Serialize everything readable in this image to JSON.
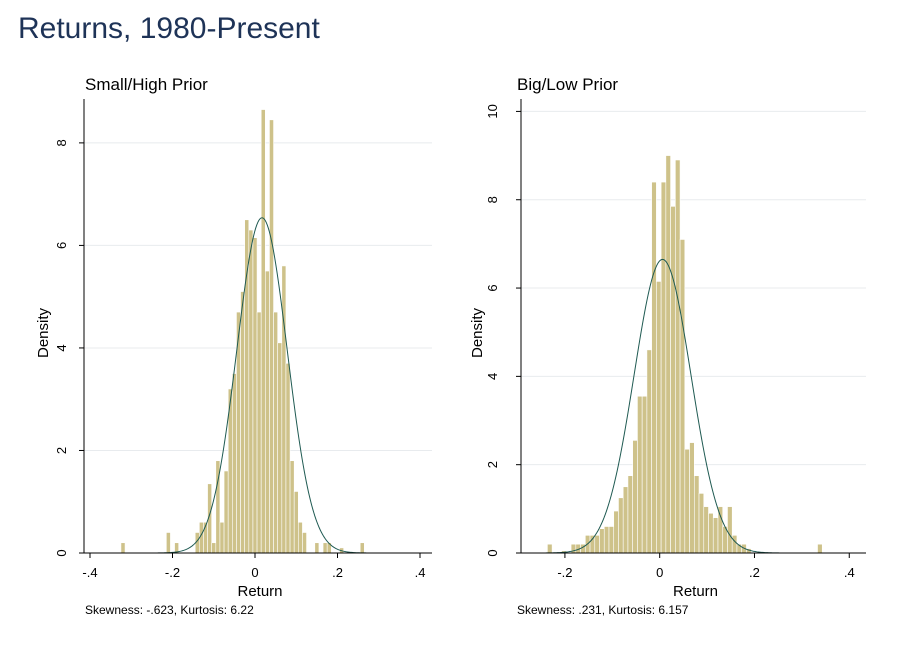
{
  "page": {
    "title": "Returns, 1980-Present"
  },
  "colors": {
    "bar_fill": "#cec28a",
    "bar_stroke": "#ffffff",
    "curve": "#1f5a52",
    "grid": "#e8ebee",
    "title": "#1e3357"
  },
  "chart_data": [
    {
      "type": "bar",
      "title": "Small/High Prior",
      "xlabel": "Return",
      "ylabel": "Density",
      "footer": "Skewness: -.623, Kurtosis: 6.22",
      "xlim": [
        -0.4,
        0.4
      ],
      "ylim": [
        0,
        8.7
      ],
      "xticks": [
        -0.4,
        -0.2,
        0,
        0.2,
        0.4
      ],
      "xtick_labels": [
        "-.4",
        "-.2",
        "0",
        ".2",
        ".4"
      ],
      "yticks": [
        0,
        2,
        4,
        6,
        8
      ],
      "ytick_labels": [
        "0",
        "2",
        "4",
        "6",
        "8"
      ],
      "grid": true,
      "bin_width": 0.01,
      "bins": [
        {
          "x": -0.32,
          "y": 0.2
        },
        {
          "x": -0.21,
          "y": 0.4
        },
        {
          "x": -0.19,
          "y": 0.2
        },
        {
          "x": -0.14,
          "y": 0.4
        },
        {
          "x": -0.13,
          "y": 0.6
        },
        {
          "x": -0.12,
          "y": 0.6
        },
        {
          "x": -0.11,
          "y": 1.35
        },
        {
          "x": -0.1,
          "y": 0.2
        },
        {
          "x": -0.09,
          "y": 1.8
        },
        {
          "x": -0.08,
          "y": 0.6
        },
        {
          "x": -0.07,
          "y": 1.6
        },
        {
          "x": -0.06,
          "y": 3.2
        },
        {
          "x": -0.05,
          "y": 3.5
        },
        {
          "x": -0.04,
          "y": 4.7
        },
        {
          "x": -0.03,
          "y": 5.1
        },
        {
          "x": -0.02,
          "y": 6.5
        },
        {
          "x": -0.01,
          "y": 6.3
        },
        {
          "x": 0.0,
          "y": 6.15
        },
        {
          "x": 0.01,
          "y": 4.7
        },
        {
          "x": 0.02,
          "y": 8.65
        },
        {
          "x": 0.03,
          "y": 5.5
        },
        {
          "x": 0.04,
          "y": 8.45
        },
        {
          "x": 0.05,
          "y": 4.7
        },
        {
          "x": 0.06,
          "y": 4.1
        },
        {
          "x": 0.07,
          "y": 5.6
        },
        {
          "x": 0.08,
          "y": 3.7
        },
        {
          "x": 0.09,
          "y": 1.8
        },
        {
          "x": 0.1,
          "y": 1.2
        },
        {
          "x": 0.11,
          "y": 0.6
        },
        {
          "x": 0.12,
          "y": 0.4
        },
        {
          "x": 0.15,
          "y": 0.2
        },
        {
          "x": 0.17,
          "y": 0.2
        },
        {
          "x": 0.18,
          "y": 0.2
        },
        {
          "x": 0.21,
          "y": 0.1
        },
        {
          "x": 0.26,
          "y": 0.2
        }
      ],
      "normal_curve": {
        "mean": 0.017,
        "sd": 0.061
      }
    },
    {
      "type": "bar",
      "title": "Big/Low Prior",
      "xlabel": "Return",
      "ylabel": "Density",
      "footer": "Skewness: .231, Kurtosis: 6.157",
      "xlim": [
        -0.28,
        0.41
      ],
      "ylim": [
        0,
        10.1
      ],
      "xticks": [
        -0.2,
        0,
        0.2,
        0.4
      ],
      "xtick_labels": [
        "-.2",
        "0",
        ".2",
        ".4"
      ],
      "yticks": [
        0,
        2,
        4,
        6,
        8,
        10
      ],
      "ytick_labels": [
        "0",
        "2",
        "4",
        "6",
        "8",
        "10"
      ],
      "grid": true,
      "bin_width": 0.01,
      "bins": [
        {
          "x": -0.232,
          "y": 0.2
        },
        {
          "x": -0.202,
          "y": 0.05
        },
        {
          "x": -0.182,
          "y": 0.2
        },
        {
          "x": -0.172,
          "y": 0.2
        },
        {
          "x": -0.162,
          "y": 0.2
        },
        {
          "x": -0.152,
          "y": 0.4
        },
        {
          "x": -0.142,
          "y": 0.4
        },
        {
          "x": -0.132,
          "y": 0.4
        },
        {
          "x": -0.122,
          "y": 0.55
        },
        {
          "x": -0.112,
          "y": 0.6
        },
        {
          "x": -0.102,
          "y": 0.6
        },
        {
          "x": -0.092,
          "y": 0.95
        },
        {
          "x": -0.082,
          "y": 1.25
        },
        {
          "x": -0.072,
          "y": 1.5
        },
        {
          "x": -0.062,
          "y": 1.75
        },
        {
          "x": -0.052,
          "y": 2.55
        },
        {
          "x": -0.042,
          "y": 3.55
        },
        {
          "x": -0.032,
          "y": 3.55
        },
        {
          "x": -0.022,
          "y": 4.6
        },
        {
          "x": -0.012,
          "y": 8.4
        },
        {
          "x": -0.002,
          "y": 6.15
        },
        {
          "x": 0.008,
          "y": 8.4
        },
        {
          "x": 0.018,
          "y": 9.0
        },
        {
          "x": 0.028,
          "y": 7.85
        },
        {
          "x": 0.038,
          "y": 8.9
        },
        {
          "x": 0.048,
          "y": 7.1
        },
        {
          "x": 0.058,
          "y": 2.35
        },
        {
          "x": 0.068,
          "y": 2.5
        },
        {
          "x": 0.078,
          "y": 1.75
        },
        {
          "x": 0.088,
          "y": 1.35
        },
        {
          "x": 0.098,
          "y": 1.05
        },
        {
          "x": 0.108,
          "y": 0.9
        },
        {
          "x": 0.118,
          "y": 0.8
        },
        {
          "x": 0.128,
          "y": 1.05
        },
        {
          "x": 0.138,
          "y": 0.6
        },
        {
          "x": 0.148,
          "y": 1.05
        },
        {
          "x": 0.158,
          "y": 0.4
        },
        {
          "x": 0.168,
          "y": 0.2
        },
        {
          "x": 0.178,
          "y": 0.2
        },
        {
          "x": 0.188,
          "y": 0.1
        },
        {
          "x": 0.338,
          "y": 0.2
        }
      ],
      "normal_curve": {
        "mean": 0.006,
        "sd": 0.06
      }
    }
  ]
}
